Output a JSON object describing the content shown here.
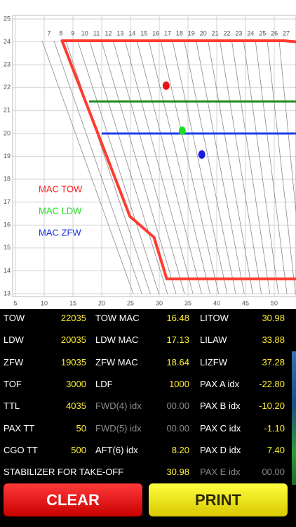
{
  "chart": {
    "yticks": [
      13,
      14,
      15,
      16,
      17,
      18,
      19,
      20,
      21,
      22,
      23,
      24,
      25
    ],
    "xticks": [
      5,
      10,
      15,
      20,
      25,
      30,
      35,
      40,
      45,
      50
    ],
    "top_labels": [
      7,
      8,
      9,
      10,
      11,
      12,
      13,
      14,
      15,
      16,
      17,
      18,
      19,
      20,
      21,
      22,
      23,
      24,
      25,
      26,
      27
    ],
    "legend": [
      {
        "name": "MAC TOW",
        "color": "#ff2020"
      },
      {
        "name": "MAC LDW",
        "color": "#22dd22"
      },
      {
        "name": "MAC ZFW",
        "color": "#1a2fe0"
      }
    ],
    "envelope": {
      "color": "#ff3b2f",
      "x": [
        13.1,
        51.7,
        54,
        54,
        31.3,
        29.1,
        24.9
      ],
      "y": [
        24.05,
        24.05,
        24.0,
        13.65,
        13.65,
        15.46,
        16.38
      ]
    },
    "limits": [
      {
        "color": "#1f8a1f",
        "x": [
          17.8,
          54
        ],
        "y": 21.4
      },
      {
        "color": "#1f3fe8",
        "x": [
          20.0,
          54
        ],
        "y": 20.0
      }
    ],
    "points": [
      {
        "x": 31.2,
        "y": 22.09,
        "color": "#ee1111"
      },
      {
        "x": 34.0,
        "y": 20.12,
        "color": "#22dd22"
      },
      {
        "x": 37.4,
        "y": 19.08,
        "color": "#1a1add"
      }
    ]
  },
  "table": {
    "rows": [
      [
        "TOW",
        "22035",
        "TOW MAC",
        "16.48",
        "LITOW",
        "30.98"
      ],
      [
        "LDW",
        "20035",
        "LDW MAC",
        "17.13",
        "LILAW",
        "33.88"
      ],
      [
        "ZFW",
        "19035",
        "ZFW MAC",
        "18.64",
        "LIZFW",
        "37.28"
      ],
      [
        "TOF",
        "3000",
        "LDF",
        "1000",
        "PAX A idx",
        "-22.80"
      ],
      [
        "TTL",
        "4035",
        "FWD(4) idx",
        "00.00",
        "PAX B idx",
        "-10.20"
      ],
      [
        "PAX TT",
        "50",
        "FWD(5) idx",
        "00.00",
        "PAX C idx",
        "-1.10"
      ],
      [
        "CGO TT",
        "500",
        "AFT(6) idx",
        "8.20",
        "PAX D idx",
        "7.40"
      ]
    ],
    "footer": [
      "STABILIZER FOR TAKE-OFF",
      "30.98",
      "PAX E idx",
      "00.00"
    ]
  },
  "buttons": {
    "clear": "CLEAR",
    "print": "PRINT"
  }
}
